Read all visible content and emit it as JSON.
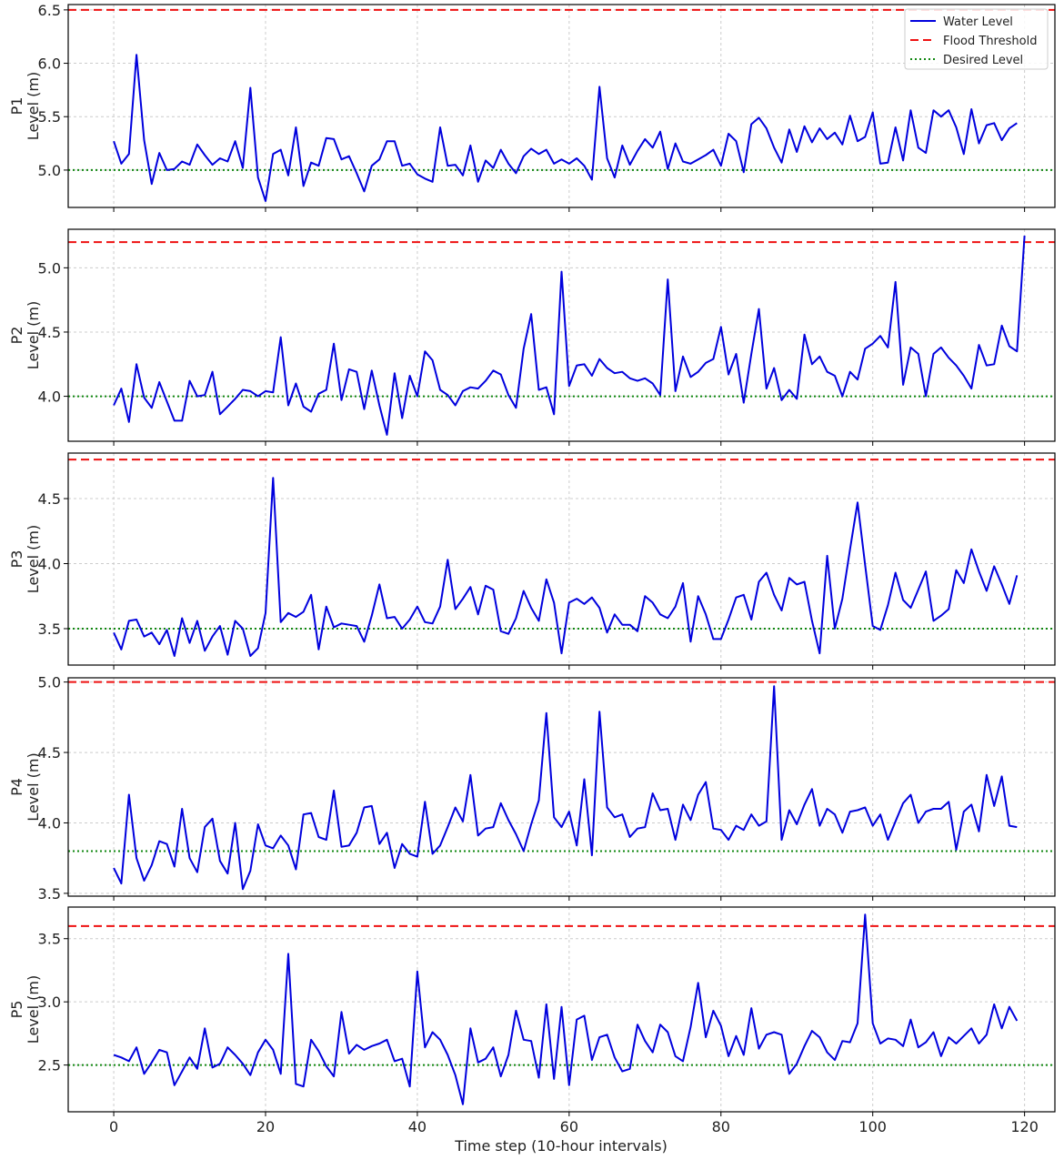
{
  "figure": {
    "xlabel": "Time step (10-hour intervals)",
    "legend": {
      "placement": "top-right",
      "entries": [
        {
          "label": "Water Level",
          "color": "#0000dd",
          "style": "solid"
        },
        {
          "label": "Flood Threshold",
          "color": "#ee1111",
          "style": "dashed"
        },
        {
          "label": "Desired Level",
          "color": "#118811",
          "style": "dotted"
        }
      ]
    },
    "grid": true
  },
  "chart_data": [
    {
      "type": "line",
      "ylabel": "P1\nLevel (m)",
      "ylabel_lines": [
        "P1",
        "Level (m)"
      ],
      "ylim": [
        4.65,
        6.55
      ],
      "yticks": [
        5.0,
        5.5,
        6.0,
        6.5
      ],
      "xlim": [
        -6,
        124
      ],
      "xticks": [
        0,
        20,
        40,
        60,
        80,
        100,
        120
      ],
      "flood_threshold": 6.5,
      "desired_level": 5.0,
      "series": [
        {
          "name": "Water Level",
          "values": [
            5.27,
            5.06,
            5.15,
            6.08,
            5.28,
            4.87,
            5.16,
            5.0,
            5.01,
            5.08,
            5.05,
            5.24,
            5.14,
            5.05,
            5.11,
            5.08,
            5.27,
            5.02,
            5.77,
            4.93,
            4.71,
            5.15,
            5.19,
            4.95,
            5.4,
            4.85,
            5.07,
            5.04,
            5.3,
            5.29,
            5.1,
            5.13,
            4.97,
            4.8,
            5.04,
            5.1,
            5.27,
            5.27,
            5.04,
            5.06,
            4.96,
            4.92,
            4.89,
            5.4,
            5.04,
            5.05,
            4.95,
            5.23,
            4.89,
            5.09,
            5.02,
            5.19,
            5.06,
            4.97,
            5.13,
            5.2,
            5.15,
            5.19,
            5.06,
            5.1,
            5.06,
            5.11,
            5.04,
            4.91,
            5.78,
            5.11,
            4.93,
            5.23,
            5.05,
            5.18,
            5.29,
            5.21,
            5.36,
            5.01,
            5.25,
            5.08,
            5.06,
            5.1,
            5.14,
            5.19,
            5.04,
            5.34,
            5.27,
            4.98,
            5.43,
            5.49,
            5.39,
            5.21,
            5.07,
            5.38,
            5.17,
            5.41,
            5.26,
            5.39,
            5.29,
            5.35,
            5.24,
            5.51,
            5.27,
            5.31,
            5.54,
            5.06,
            5.07,
            5.4,
            5.09,
            5.56,
            5.21,
            5.16,
            5.56,
            5.5,
            5.56,
            5.4,
            5.15,
            5.57,
            5.25,
            5.42,
            5.44,
            5.28,
            5.39,
            5.44
          ]
        }
      ]
    },
    {
      "type": "line",
      "ylabel": "P2\nLevel (m)",
      "ylabel_lines": [
        "P2",
        "Level (m)"
      ],
      "ylim": [
        3.65,
        5.3
      ],
      "yticks": [
        4.0,
        4.5,
        5.0
      ],
      "xlim": [
        -6,
        124
      ],
      "xticks": [
        0,
        20,
        40,
        60,
        80,
        100,
        120
      ],
      "flood_threshold": 5.2,
      "desired_level": 4.0,
      "series": [
        {
          "name": "Water Level",
          "values": [
            3.93,
            4.06,
            3.8,
            4.25,
            3.99,
            3.91,
            4.11,
            3.96,
            3.81,
            3.81,
            4.12,
            4.0,
            4.01,
            4.19,
            3.86,
            3.92,
            3.98,
            4.05,
            4.04,
            4.0,
            4.04,
            4.03,
            4.46,
            3.93,
            4.1,
            3.92,
            3.88,
            4.02,
            4.05,
            4.41,
            3.97,
            4.21,
            4.19,
            3.9,
            4.2,
            3.93,
            3.7,
            4.18,
            3.83,
            4.16,
            4.0,
            4.35,
            4.28,
            4.05,
            4.01,
            3.93,
            4.04,
            4.07,
            4.06,
            4.12,
            4.2,
            4.17,
            4.01,
            3.91,
            4.37,
            4.64,
            4.05,
            4.07,
            3.86,
            4.97,
            4.08,
            4.24,
            4.25,
            4.16,
            4.29,
            4.22,
            4.18,
            4.19,
            4.14,
            4.12,
            4.14,
            4.1,
            4.01,
            4.91,
            4.04,
            4.31,
            4.15,
            4.19,
            4.26,
            4.29,
            4.54,
            4.17,
            4.33,
            3.95,
            4.33,
            4.68,
            4.06,
            4.22,
            3.97,
            4.05,
            3.98,
            4.48,
            4.25,
            4.31,
            4.19,
            4.16,
            4.0,
            4.19,
            4.13,
            4.37,
            4.41,
            4.47,
            4.38,
            4.89,
            4.09,
            4.38,
            4.33,
            4.0,
            4.33,
            4.38,
            4.3,
            4.24,
            4.16,
            4.06,
            4.4,
            4.24,
            4.25,
            4.55,
            4.39,
            4.35,
            5.25
          ]
        }
      ]
    },
    {
      "type": "line",
      "ylabel": "P3\nLevel (m)",
      "ylabel_lines": [
        "P3",
        "Level (m)"
      ],
      "ylim": [
        3.22,
        4.85
      ],
      "yticks": [
        3.5,
        4.0,
        4.5
      ],
      "xlim": [
        -6,
        124
      ],
      "xticks": [
        0,
        20,
        40,
        60,
        80,
        100,
        120
      ],
      "flood_threshold": 4.8,
      "desired_level": 3.5,
      "series": [
        {
          "name": "Water Level",
          "values": [
            3.47,
            3.34,
            3.56,
            3.57,
            3.44,
            3.47,
            3.38,
            3.49,
            3.29,
            3.58,
            3.39,
            3.56,
            3.33,
            3.44,
            3.52,
            3.3,
            3.56,
            3.5,
            3.29,
            3.35,
            3.62,
            4.66,
            3.55,
            3.62,
            3.59,
            3.63,
            3.76,
            3.34,
            3.67,
            3.51,
            3.54,
            3.53,
            3.52,
            3.4,
            3.6,
            3.84,
            3.58,
            3.59,
            3.5,
            3.57,
            3.67,
            3.55,
            3.54,
            3.67,
            4.03,
            3.65,
            3.73,
            3.82,
            3.61,
            3.83,
            3.8,
            3.48,
            3.46,
            3.58,
            3.79,
            3.66,
            3.56,
            3.88,
            3.7,
            3.31,
            3.7,
            3.73,
            3.69,
            3.74,
            3.66,
            3.47,
            3.61,
            3.53,
            3.53,
            3.48,
            3.75,
            3.7,
            3.61,
            3.58,
            3.67,
            3.85,
            3.4,
            3.75,
            3.61,
            3.42,
            3.42,
            3.57,
            3.74,
            3.76,
            3.57,
            3.86,
            3.93,
            3.76,
            3.64,
            3.89,
            3.84,
            3.86,
            3.56,
            3.31,
            4.06,
            3.5,
            3.73,
            4.11,
            4.47,
            3.99,
            3.52,
            3.49,
            3.68,
            3.93,
            3.72,
            3.66,
            3.8,
            3.94,
            3.56,
            3.6,
            3.65,
            3.95,
            3.85,
            4.11,
            3.94,
            3.79,
            3.98,
            3.84,
            3.69,
            3.91
          ]
        }
      ]
    },
    {
      "type": "line",
      "ylabel": "P4\nLevel (m)",
      "ylabel_lines": [
        "P4",
        "Level (m)"
      ],
      "ylim": [
        3.48,
        5.03
      ],
      "yticks": [
        3.5,
        4.0,
        4.5,
        5.0
      ],
      "xlim": [
        -6,
        124
      ],
      "xticks": [
        0,
        20,
        40,
        60,
        80,
        100,
        120
      ],
      "flood_threshold": 5.0,
      "desired_level": 3.8,
      "series": [
        {
          "name": "Water Level",
          "values": [
            3.68,
            3.57,
            4.2,
            3.75,
            3.59,
            3.7,
            3.87,
            3.85,
            3.69,
            4.1,
            3.75,
            3.65,
            3.97,
            4.03,
            3.73,
            3.64,
            4.0,
            3.53,
            3.66,
            3.99,
            3.84,
            3.82,
            3.91,
            3.84,
            3.67,
            4.06,
            4.07,
            3.9,
            3.88,
            4.23,
            3.83,
            3.84,
            3.93,
            4.11,
            4.12,
            3.85,
            3.93,
            3.68,
            3.85,
            3.78,
            3.76,
            4.15,
            3.78,
            3.84,
            3.97,
            4.11,
            4.01,
            4.34,
            3.91,
            3.96,
            3.97,
            4.14,
            4.02,
            3.92,
            3.8,
            3.99,
            4.16,
            4.78,
            4.04,
            3.97,
            4.08,
            3.84,
            4.31,
            3.77,
            4.79,
            4.11,
            4.04,
            4.06,
            3.9,
            3.96,
            3.97,
            4.21,
            4.09,
            4.1,
            3.88,
            4.13,
            4.02,
            4.2,
            4.29,
            3.96,
            3.95,
            3.88,
            3.98,
            3.95,
            4.06,
            3.98,
            4.01,
            4.97,
            3.88,
            4.09,
            3.99,
            4.13,
            4.24,
            3.98,
            4.1,
            4.06,
            3.93,
            4.08,
            4.09,
            4.11,
            3.98,
            4.06,
            3.88,
            4.01,
            4.14,
            4.2,
            4.0,
            4.08,
            4.1,
            4.1,
            4.15,
            3.81,
            4.08,
            4.13,
            3.94,
            4.34,
            4.12,
            4.33,
            3.98,
            3.97
          ]
        }
      ]
    },
    {
      "type": "line",
      "ylabel": "P5\nLevel (m)",
      "ylabel_lines": [
        "P5",
        "Level (m)"
      ],
      "ylim": [
        2.13,
        3.75
      ],
      "yticks": [
        2.5,
        3.0,
        3.5
      ],
      "xlim": [
        -6,
        124
      ],
      "xticks": [
        0,
        20,
        40,
        60,
        80,
        100,
        120
      ],
      "flood_threshold": 3.6,
      "desired_level": 2.5,
      "series": [
        {
          "name": "Water Level",
          "values": [
            2.58,
            2.56,
            2.53,
            2.64,
            2.43,
            2.52,
            2.62,
            2.6,
            2.34,
            2.45,
            2.56,
            2.47,
            2.79,
            2.48,
            2.51,
            2.64,
            2.58,
            2.51,
            2.42,
            2.6,
            2.7,
            2.62,
            2.43,
            3.38,
            2.35,
            2.33,
            2.7,
            2.61,
            2.49,
            2.41,
            2.92,
            2.59,
            2.66,
            2.62,
            2.65,
            2.67,
            2.7,
            2.53,
            2.55,
            2.33,
            3.24,
            2.64,
            2.76,
            2.7,
            2.58,
            2.42,
            2.19,
            2.79,
            2.52,
            2.55,
            2.64,
            2.41,
            2.58,
            2.93,
            2.7,
            2.69,
            2.4,
            2.98,
            2.39,
            2.96,
            2.34,
            2.86,
            2.89,
            2.54,
            2.72,
            2.74,
            2.56,
            2.45,
            2.47,
            2.82,
            2.69,
            2.6,
            2.82,
            2.76,
            2.57,
            2.53,
            2.8,
            3.15,
            2.72,
            2.93,
            2.81,
            2.57,
            2.73,
            2.58,
            2.95,
            2.63,
            2.74,
            2.76,
            2.74,
            2.43,
            2.51,
            2.65,
            2.77,
            2.72,
            2.6,
            2.54,
            2.69,
            2.68,
            2.83,
            3.69,
            2.83,
            2.67,
            2.71,
            2.7,
            2.65,
            2.86,
            2.64,
            2.68,
            2.76,
            2.57,
            2.72,
            2.67,
            2.73,
            2.79,
            2.67,
            2.74,
            2.98,
            2.79,
            2.96,
            2.85
          ]
        }
      ]
    }
  ]
}
